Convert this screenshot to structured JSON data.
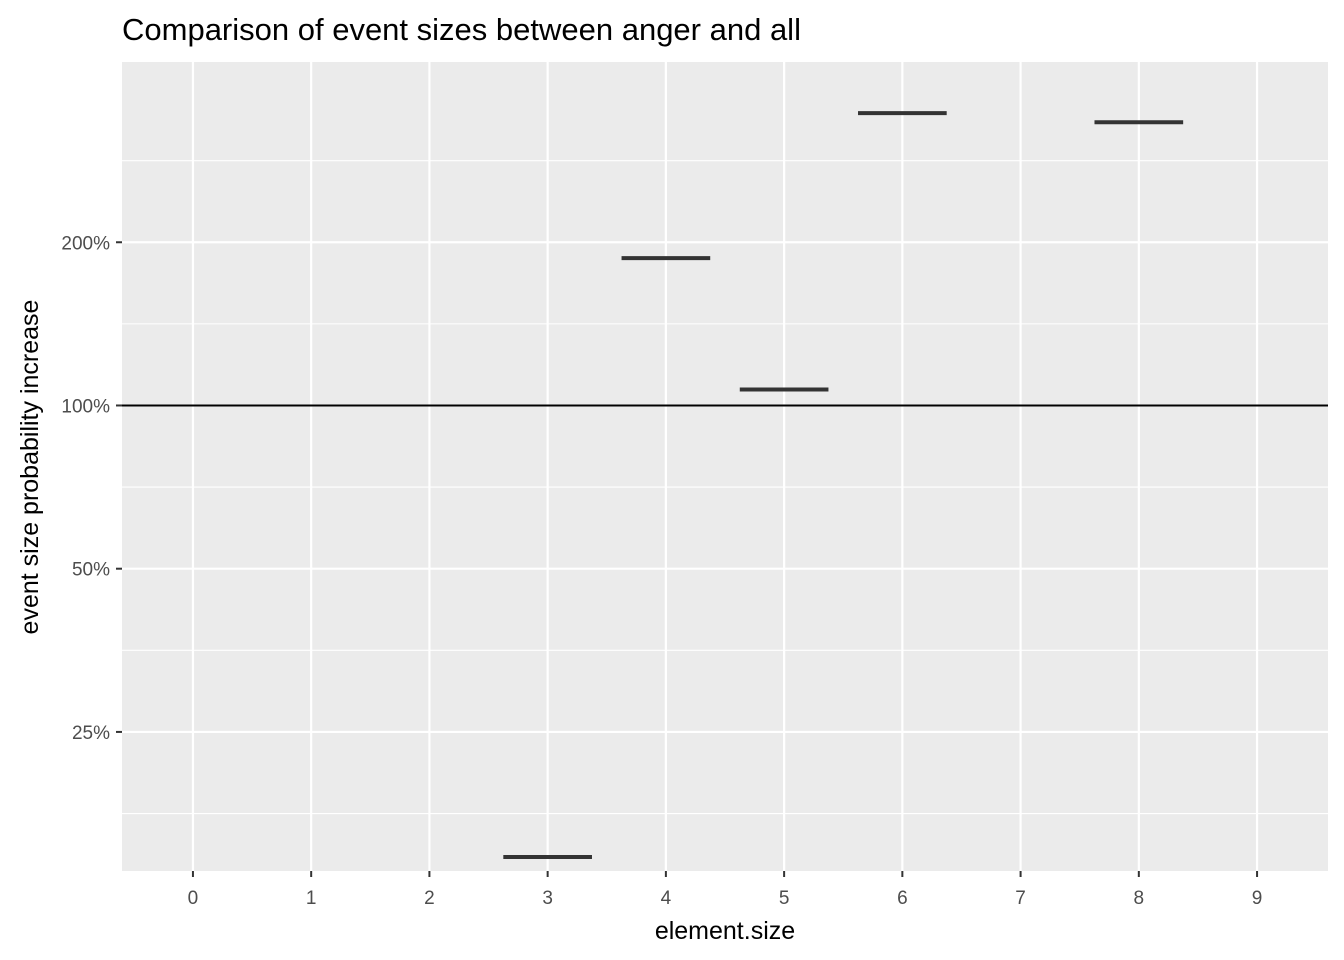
{
  "chart_data": {
    "type": "errorbar-crossbar",
    "title": "Comparison of event sizes between anger and all",
    "xlabel": "element.size",
    "ylabel": "event size probability increase",
    "x_ticks": [
      0,
      1,
      2,
      3,
      4,
      5,
      6,
      7,
      8,
      9
    ],
    "x_tick_labels": [
      "0",
      "1",
      "2",
      "3",
      "4",
      "5",
      "6",
      "7",
      "8",
      "9"
    ],
    "y_scale": "log2",
    "y_ticks": [
      0.25,
      0.5,
      1.0,
      2.0
    ],
    "y_tick_labels": [
      "25%",
      "50%",
      "100%",
      "200%"
    ],
    "xlim": [
      -0.6,
      9.6
    ],
    "ylim": [
      0.1385,
      4.3
    ],
    "reference_line": 1.0,
    "grid": true,
    "points": [
      {
        "x": 3,
        "y": 0.147
      },
      {
        "x": 4,
        "y": 1.87
      },
      {
        "x": 5,
        "y": 1.07
      },
      {
        "x": 6,
        "y": 3.46
      },
      {
        "x": 8,
        "y": 3.33
      }
    ]
  }
}
